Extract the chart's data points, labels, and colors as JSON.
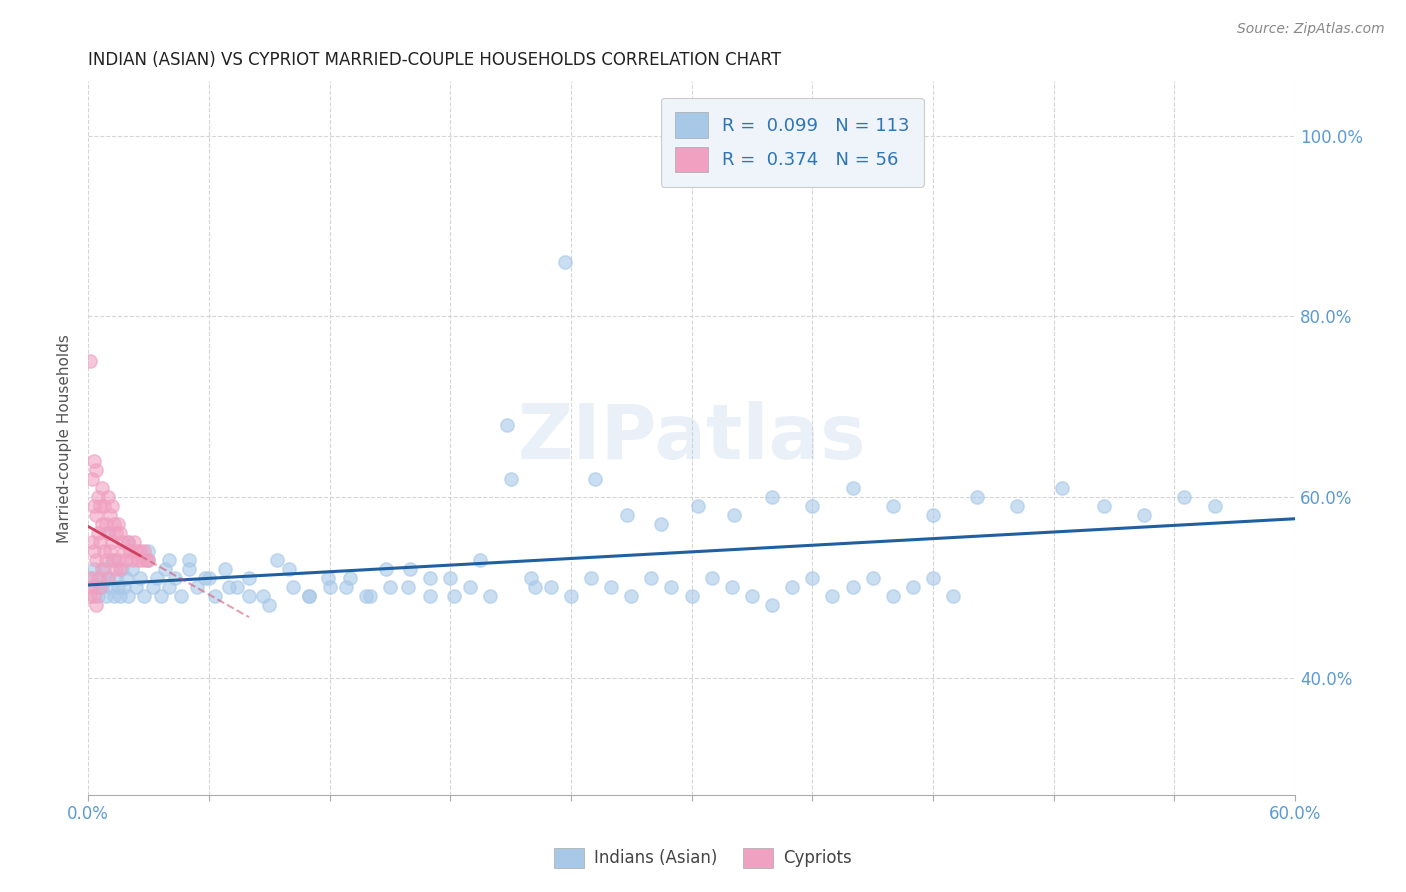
{
  "title": "INDIAN (ASIAN) VS CYPRIOT MARRIED-COUPLE HOUSEHOLDS CORRELATION CHART",
  "source": "Source: ZipAtlas.com",
  "ylabel": "Married-couple Households",
  "xmin": 0.0,
  "xmax": 0.6,
  "ymin": 0.27,
  "ymax": 1.06,
  "R_blue": 0.099,
  "N_blue": 113,
  "R_pink": 0.374,
  "N_pink": 56,
  "blue_color": "#A8C8E8",
  "pink_color": "#F0A0C0",
  "trendline_blue": "#2060A0",
  "trendline_pink": "#D04060",
  "watermark": "ZIPatlas",
  "y_ticks": [
    0.4,
    0.6,
    0.8,
    1.0
  ],
  "x_tick_labels_show": [
    0,
    10
  ],
  "blue_x": [
    0.002,
    0.003,
    0.004,
    0.005,
    0.006,
    0.007,
    0.008,
    0.009,
    0.01,
    0.011,
    0.012,
    0.013,
    0.014,
    0.015,
    0.016,
    0.017,
    0.018,
    0.019,
    0.02,
    0.022,
    0.024,
    0.026,
    0.028,
    0.03,
    0.032,
    0.034,
    0.036,
    0.038,
    0.04,
    0.043,
    0.046,
    0.05,
    0.054,
    0.058,
    0.063,
    0.068,
    0.074,
    0.08,
    0.087,
    0.094,
    0.102,
    0.11,
    0.119,
    0.128,
    0.138,
    0.148,
    0.159,
    0.17,
    0.182,
    0.195,
    0.208,
    0.222,
    0.237,
    0.252,
    0.268,
    0.285,
    0.303,
    0.321,
    0.34,
    0.36,
    0.38,
    0.4,
    0.42,
    0.442,
    0.462,
    0.484,
    0.505,
    0.525,
    0.545,
    0.56,
    0.01,
    0.02,
    0.03,
    0.04,
    0.05,
    0.06,
    0.07,
    0.08,
    0.09,
    0.1,
    0.11,
    0.12,
    0.13,
    0.14,
    0.15,
    0.16,
    0.17,
    0.18,
    0.19,
    0.2,
    0.21,
    0.22,
    0.23,
    0.24,
    0.25,
    0.26,
    0.27,
    0.28,
    0.29,
    0.3,
    0.31,
    0.32,
    0.33,
    0.34,
    0.35,
    0.36,
    0.37,
    0.38,
    0.39,
    0.4,
    0.41,
    0.42,
    0.43
  ],
  "blue_y": [
    0.51,
    0.52,
    0.5,
    0.49,
    0.51,
    0.5,
    0.52,
    0.49,
    0.51,
    0.5,
    0.53,
    0.49,
    0.51,
    0.5,
    0.49,
    0.52,
    0.5,
    0.51,
    0.49,
    0.52,
    0.5,
    0.51,
    0.49,
    0.53,
    0.5,
    0.51,
    0.49,
    0.52,
    0.5,
    0.51,
    0.49,
    0.53,
    0.5,
    0.51,
    0.49,
    0.52,
    0.5,
    0.51,
    0.49,
    0.53,
    0.5,
    0.49,
    0.51,
    0.5,
    0.49,
    0.52,
    0.5,
    0.51,
    0.49,
    0.53,
    0.68,
    0.5,
    0.86,
    0.62,
    0.58,
    0.57,
    0.59,
    0.58,
    0.6,
    0.59,
    0.61,
    0.59,
    0.58,
    0.6,
    0.59,
    0.61,
    0.59,
    0.58,
    0.6,
    0.59,
    0.56,
    0.55,
    0.54,
    0.53,
    0.52,
    0.51,
    0.5,
    0.49,
    0.48,
    0.52,
    0.49,
    0.5,
    0.51,
    0.49,
    0.5,
    0.52,
    0.49,
    0.51,
    0.5,
    0.49,
    0.62,
    0.51,
    0.5,
    0.49,
    0.51,
    0.5,
    0.49,
    0.51,
    0.5,
    0.49,
    0.51,
    0.5,
    0.49,
    0.48,
    0.5,
    0.51,
    0.49,
    0.5,
    0.51,
    0.49,
    0.5,
    0.51,
    0.49
  ],
  "pink_x": [
    0.001,
    0.001,
    0.001,
    0.002,
    0.002,
    0.002,
    0.003,
    0.003,
    0.003,
    0.003,
    0.004,
    0.004,
    0.004,
    0.004,
    0.005,
    0.005,
    0.005,
    0.006,
    0.006,
    0.006,
    0.007,
    0.007,
    0.007,
    0.008,
    0.008,
    0.009,
    0.009,
    0.01,
    0.01,
    0.01,
    0.011,
    0.011,
    0.012,
    0.012,
    0.013,
    0.013,
    0.014,
    0.014,
    0.015,
    0.015,
    0.016,
    0.016,
    0.017,
    0.018,
    0.019,
    0.02,
    0.021,
    0.022,
    0.023,
    0.024,
    0.025,
    0.026,
    0.027,
    0.028,
    0.029,
    0.03
  ],
  "pink_y": [
    0.75,
    0.51,
    0.49,
    0.62,
    0.55,
    0.5,
    0.64,
    0.59,
    0.54,
    0.49,
    0.63,
    0.58,
    0.53,
    0.48,
    0.6,
    0.56,
    0.51,
    0.59,
    0.55,
    0.5,
    0.61,
    0.57,
    0.52,
    0.59,
    0.54,
    0.57,
    0.53,
    0.6,
    0.56,
    0.51,
    0.58,
    0.54,
    0.59,
    0.55,
    0.57,
    0.53,
    0.56,
    0.52,
    0.57,
    0.53,
    0.56,
    0.52,
    0.55,
    0.54,
    0.53,
    0.55,
    0.54,
    0.53,
    0.55,
    0.54,
    0.53,
    0.54,
    0.53,
    0.54,
    0.53,
    0.53
  ]
}
